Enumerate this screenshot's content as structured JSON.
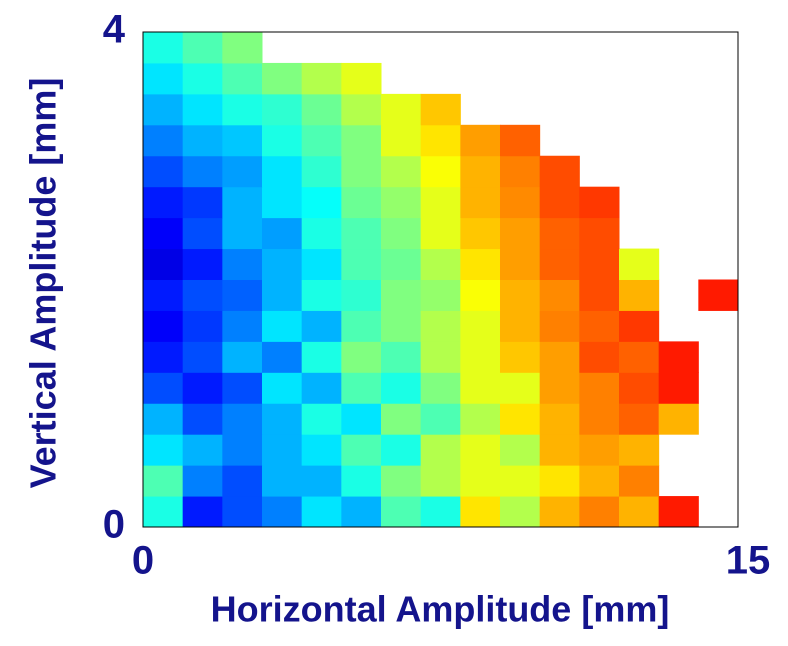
{
  "chart_data": {
    "type": "heatmap",
    "xlabel": "Horizontal Amplitude [mm]",
    "ylabel": "Vertical Amplitude [mm]",
    "colormap": "jet",
    "xlim": [
      0,
      15
    ],
    "xticks": [
      0,
      15
    ],
    "ylim": [
      0,
      4
    ],
    "yticks": [
      0,
      4
    ],
    "xbins": [
      0,
      1,
      2,
      3,
      4,
      5,
      6,
      7,
      8,
      9,
      10,
      11,
      12,
      13,
      14,
      15
    ],
    "ybins": [
      0,
      0.25,
      0.5,
      0.75,
      1,
      1.25,
      1.5,
      1.75,
      2,
      2.25,
      2.5,
      2.75,
      3,
      3.25,
      3.5,
      3.75,
      4
    ],
    "values": [
      [
        0.4,
        0.15,
        0.2,
        0.25,
        0.35,
        0.3,
        0.45,
        0.4,
        0.65,
        0.55,
        0.7,
        0.75,
        0.7,
        0.85,
        null
      ],
      [
        0.45,
        0.25,
        0.2,
        0.3,
        0.3,
        0.4,
        0.5,
        0.55,
        0.6,
        0.6,
        0.65,
        0.7,
        0.75,
        null,
        null
      ],
      [
        0.35,
        0.3,
        0.25,
        0.3,
        0.35,
        0.45,
        0.4,
        0.55,
        0.6,
        0.55,
        0.7,
        0.72,
        0.7,
        null,
        null
      ],
      [
        0.3,
        0.2,
        0.25,
        0.3,
        0.4,
        0.35,
        0.5,
        0.45,
        0.55,
        0.65,
        0.7,
        0.75,
        0.78,
        0.7,
        null
      ],
      [
        0.2,
        0.15,
        0.2,
        0.35,
        0.3,
        0.45,
        0.4,
        0.5,
        0.6,
        0.6,
        0.72,
        0.75,
        0.8,
        0.85,
        null
      ],
      [
        0.15,
        0.2,
        0.3,
        0.25,
        0.4,
        0.5,
        0.45,
        0.55,
        0.6,
        0.68,
        0.72,
        0.8,
        0.78,
        0.85,
        null
      ],
      [
        0.12,
        0.18,
        0.25,
        0.35,
        0.3,
        0.45,
        0.5,
        0.55,
        0.6,
        0.7,
        0.75,
        0.78,
        0.82,
        null,
        null
      ],
      [
        0.15,
        0.2,
        0.22,
        0.3,
        0.4,
        0.42,
        0.5,
        0.52,
        0.62,
        0.7,
        0.74,
        0.8,
        0.7,
        null,
        0.85
      ],
      [
        0.1,
        0.15,
        0.25,
        0.3,
        0.35,
        0.45,
        0.48,
        0.55,
        0.65,
        0.72,
        0.78,
        0.8,
        0.6,
        null,
        null
      ],
      [
        0.12,
        0.2,
        0.3,
        0.28,
        0.4,
        0.45,
        0.5,
        0.6,
        0.68,
        0.72,
        0.78,
        0.8,
        null,
        null,
        null
      ],
      [
        0.15,
        0.18,
        0.3,
        0.35,
        0.38,
        0.48,
        0.52,
        0.6,
        0.7,
        0.74,
        0.8,
        0.82,
        null,
        null,
        null
      ],
      [
        0.2,
        0.25,
        0.28,
        0.35,
        0.42,
        0.5,
        0.55,
        0.62,
        0.7,
        0.75,
        0.8,
        null,
        null,
        null,
        null
      ],
      [
        0.25,
        0.3,
        0.32,
        0.4,
        0.45,
        0.5,
        0.6,
        0.65,
        0.72,
        0.78,
        null,
        null,
        null,
        null,
        null
      ],
      [
        0.3,
        0.35,
        0.4,
        0.42,
        0.48,
        0.55,
        0.6,
        0.68,
        null,
        null,
        null,
        null,
        null,
        null,
        null
      ],
      [
        0.35,
        0.4,
        0.45,
        0.5,
        0.55,
        0.6,
        null,
        null,
        null,
        null,
        null,
        null,
        null,
        null,
        null
      ],
      [
        0.4,
        0.45,
        0.5,
        null,
        null,
        null,
        null,
        null,
        null,
        null,
        null,
        null,
        null,
        null,
        null
      ]
    ]
  }
}
